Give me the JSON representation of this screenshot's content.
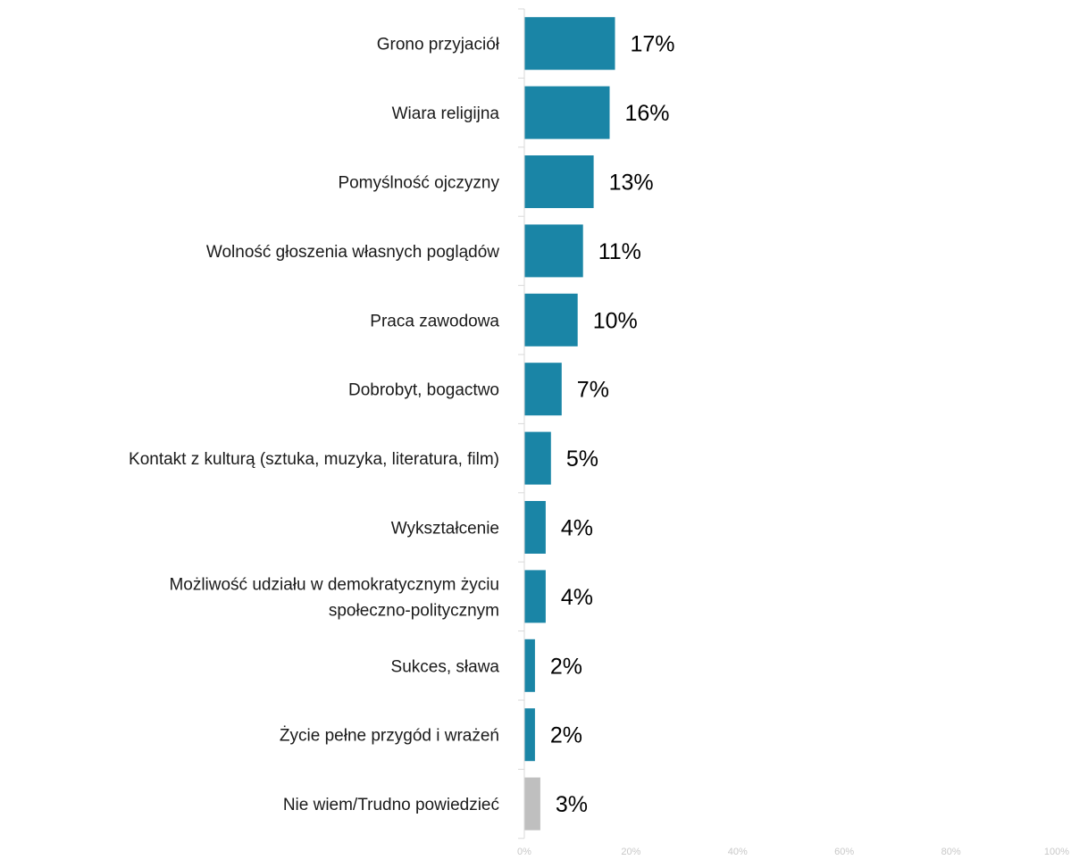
{
  "chart_data": {
    "type": "bar",
    "orientation": "horizontal",
    "title": "",
    "xlabel": "",
    "ylabel": "",
    "categories": [
      "Grono przyjaciół",
      "Wiara religijna",
      "Pomyślność ojczyzny",
      "Wolność głoszenia własnych poglądów",
      "Praca zawodowa",
      "Dobrobyt, bogactwo",
      "Kontakt z kulturą (sztuka, muzyka, literatura, film)",
      "Wykształcenie",
      "Możliwość udziału w demokratycznym życiu społeczno-politycznym",
      "Sukces, sława",
      "Życie pełne przygód i wrażeń",
      "Nie wiem/Trudno powiedzieć"
    ],
    "category_lines": [
      [
        "Grono przyjaciół"
      ],
      [
        "Wiara religijna"
      ],
      [
        "Pomyślność ojczyzny"
      ],
      [
        "Wolność głoszenia własnych poglądów"
      ],
      [
        "Praca zawodowa"
      ],
      [
        "Dobrobyt, bogactwo"
      ],
      [
        "Kontakt z kulturą (sztuka, muzyka, literatura, film)"
      ],
      [
        "Wykształcenie"
      ],
      [
        "Możliwość udziału w demokratycznym życiu",
        "społeczno-politycznym"
      ],
      [
        "Sukces, sława"
      ],
      [
        "Życie pełne przygód i wrażeń"
      ],
      [
        "Nie wiem/Trudno powiedzieć"
      ]
    ],
    "values": [
      17,
      16,
      13,
      11,
      10,
      7,
      5,
      4,
      4,
      2,
      2,
      3
    ],
    "value_labels": [
      "17%",
      "16%",
      "13%",
      "11%",
      "10%",
      "7%",
      "5%",
      "4%",
      "4%",
      "2%",
      "2%",
      "3%"
    ],
    "bar_colors": [
      "#1a85a6",
      "#1a85a6",
      "#1a85a6",
      "#1a85a6",
      "#1a85a6",
      "#1a85a6",
      "#1a85a6",
      "#1a85a6",
      "#1a85a6",
      "#1a85a6",
      "#1a85a6",
      "#bfbfbf"
    ],
    "xlim": [
      0,
      100
    ],
    "x_ticks": [
      0,
      20,
      40,
      60,
      80,
      100
    ],
    "x_tick_labels": [
      "0%",
      "20%",
      "40%",
      "60%",
      "80%",
      "100%"
    ],
    "grid": false,
    "legend": "none"
  }
}
